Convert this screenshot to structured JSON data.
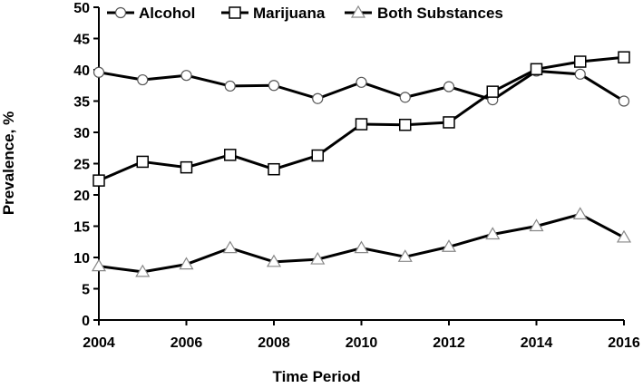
{
  "chart_data": {
    "type": "line",
    "xlabel": "Time Period",
    "ylabel": "Prevalence, %",
    "xlim": [
      2004,
      2016
    ],
    "ylim": [
      0,
      50
    ],
    "x_ticks": [
      2004,
      2006,
      2008,
      2010,
      2012,
      2014,
      2016
    ],
    "y_ticks": [
      0,
      5,
      10,
      15,
      20,
      25,
      30,
      35,
      40,
      45,
      50
    ],
    "grid": false,
    "legend_position": "top",
    "x": [
      2004,
      2005,
      2006,
      2007,
      2008,
      2009,
      2010,
      2011,
      2012,
      2013,
      2014,
      2015,
      2016
    ],
    "series": [
      {
        "name": "Alcohol",
        "marker": "circle",
        "values": [
          39.6,
          38.4,
          39.1,
          37.4,
          37.5,
          35.4,
          38.0,
          35.6,
          37.3,
          35.2,
          39.8,
          39.3,
          35.0
        ]
      },
      {
        "name": "Marijuana",
        "marker": "square",
        "values": [
          22.3,
          25.3,
          24.4,
          26.4,
          24.1,
          26.3,
          31.3,
          31.2,
          31.6,
          36.5,
          40.1,
          41.3,
          42.0
        ]
      },
      {
        "name": "Both Substances",
        "marker": "triangle",
        "values": [
          8.6,
          7.7,
          8.9,
          11.5,
          9.3,
          9.7,
          11.5,
          10.1,
          11.7,
          13.7,
          15.0,
          16.9,
          13.2
        ]
      }
    ]
  }
}
